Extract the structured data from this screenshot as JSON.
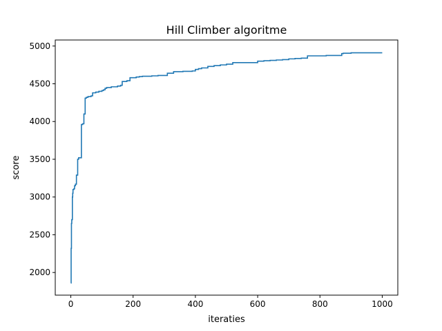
{
  "chart_data": {
    "type": "line",
    "title": "Hill Climber algoritme",
    "xlabel": "iteraties",
    "ylabel": "score",
    "xlim": [
      -50,
      1050
    ],
    "ylim": [
      1700,
      5080
    ],
    "xticks": [
      0,
      200,
      400,
      600,
      800,
      1000
    ],
    "yticks": [
      2000,
      2500,
      3000,
      3500,
      4000,
      4500,
      5000
    ],
    "grid": false,
    "line_color": "#1f77b4",
    "series": [
      {
        "x": [
          0,
          1,
          2,
          3,
          5,
          6,
          7,
          10,
          12,
          15,
          18,
          20,
          22,
          25,
          28,
          30,
          34,
          36,
          38,
          42,
          44,
          46,
          48,
          50,
          55,
          60,
          65,
          70,
          75,
          80,
          90,
          100,
          105,
          110,
          115,
          120,
          130,
          140,
          150,
          160,
          165,
          170,
          180,
          190,
          200,
          210,
          220,
          230,
          240,
          260,
          280,
          300,
          310,
          320,
          330,
          340,
          360,
          380,
          390,
          400,
          410,
          420,
          440,
          460,
          480,
          500,
          520,
          540,
          560,
          580,
          600,
          620,
          640,
          660,
          680,
          700,
          720,
          740,
          760,
          780,
          800,
          820,
          840,
          860,
          870,
          875,
          880,
          900,
          950,
          1000
        ],
        "y": [
          1860,
          2320,
          2650,
          2700,
          3000,
          3050,
          3100,
          3110,
          3150,
          3170,
          3290,
          3290,
          3500,
          3520,
          3520,
          3520,
          3960,
          3960,
          3970,
          4100,
          4100,
          4310,
          4310,
          4320,
          4330,
          4330,
          4340,
          4380,
          4380,
          4390,
          4400,
          4410,
          4420,
          4440,
          4450,
          4450,
          4460,
          4460,
          4470,
          4480,
          4530,
          4530,
          4540,
          4580,
          4580,
          4590,
          4595,
          4600,
          4600,
          4605,
          4610,
          4610,
          4640,
          4640,
          4660,
          4660,
          4665,
          4665,
          4670,
          4690,
          4700,
          4710,
          4730,
          4740,
          4750,
          4760,
          4780,
          4780,
          4780,
          4780,
          4800,
          4805,
          4810,
          4815,
          4820,
          4830,
          4835,
          4840,
          4870,
          4870,
          4870,
          4875,
          4875,
          4875,
          4900,
          4905,
          4905,
          4910,
          4910,
          4910
        ]
      }
    ]
  }
}
